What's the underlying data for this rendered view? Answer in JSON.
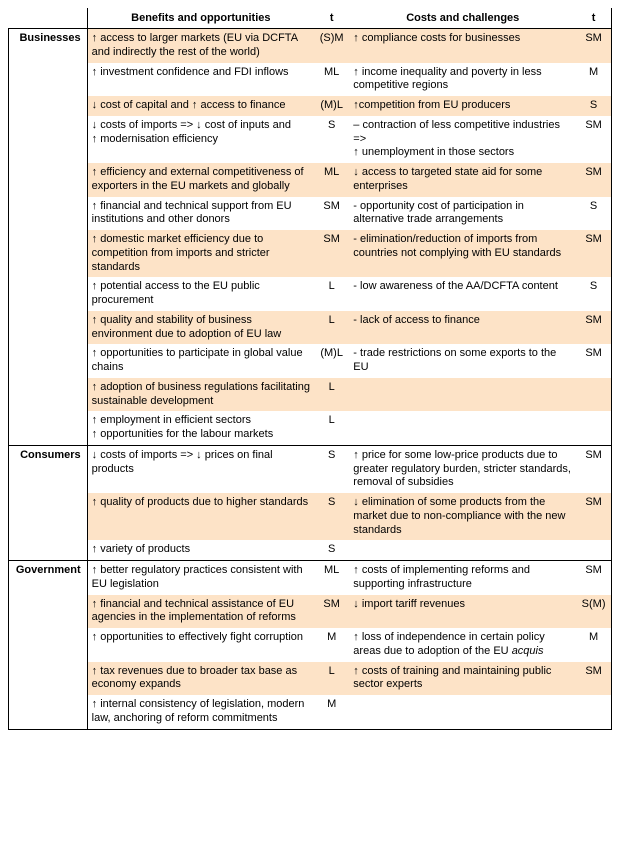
{
  "headers": {
    "group": "",
    "benefits": "Benefits and opportunities",
    "t1": "t",
    "costs": "Costs and challenges",
    "t2": "t"
  },
  "colors": {
    "shade": "#fde3c7",
    "border": "#000000",
    "text": "#000000",
    "background": "#ffffff"
  },
  "typography": {
    "font_family": "Arial, Helvetica, sans-serif",
    "font_size_pt": 8.5,
    "header_weight": "bold"
  },
  "sections": [
    {
      "name": "Businesses",
      "rows": [
        {
          "shade": true,
          "benefit": "↑ access to larger markets (EU via DCFTA and indirectly the rest of the world)",
          "t1": "(S)M",
          "cost": "↑ compliance costs for businesses",
          "t2": "SM"
        },
        {
          "shade": false,
          "benefit": "↑ investment confidence and FDI inflows",
          "t1": "ML",
          "cost": "↑ income inequality and poverty in less competitive regions",
          "t2": "M"
        },
        {
          "shade": true,
          "benefit": "↓ cost of capital and ↑ access to finance",
          "t1": "(M)L",
          "cost": "↑competition from EU producers",
          "t2": "S"
        },
        {
          "shade": false,
          "benefit": "↓ costs of imports => ↓ cost of inputs and\n↑ modernisation efficiency",
          "t1": "S",
          "cost": " – contraction of less competitive industries =>\n↑ unemployment in those sectors",
          "t2": "SM"
        },
        {
          "shade": true,
          "benefit": "↑ efficiency and external competitiveness of exporters in the EU markets and globally",
          "t1": "ML",
          "cost": "↓ access to targeted state aid for some enterprises",
          "t2": "SM"
        },
        {
          "shade": false,
          "benefit": "↑ financial and technical support from EU institutions and other donors",
          "t1": "SM",
          "cost": "- opportunity cost of participation in alternative trade arrangements",
          "t2": "S"
        },
        {
          "shade": true,
          "benefit": "↑ domestic market efficiency due to competition from imports and stricter standards",
          "t1": "SM",
          "cost": "- elimination/reduction of imports from countries not complying with EU standards",
          "t2": "SM"
        },
        {
          "shade": false,
          "benefit": "↑ potential access to the EU public procurement",
          "t1": "L",
          "cost": "- low awareness of the AA/DCFTA content",
          "t2": "S"
        },
        {
          "shade": true,
          "benefit": "↑ quality and stability of business environment due to adoption of EU law",
          "t1": "L",
          "cost": " - lack of access to finance",
          "t2": "SM"
        },
        {
          "shade": false,
          "benefit": "↑ opportunities to participate in global value chains",
          "t1": "(M)L",
          "cost": " - trade restrictions on some exports to the EU",
          "t2": "SM"
        },
        {
          "shade": true,
          "benefit": "↑ adoption of business regulations facilitating sustainable development",
          "t1": "L",
          "cost": "",
          "t2": ""
        },
        {
          "shade": false,
          "benefit": "↑ employment in efficient sectors\n↑ opportunities for the labour markets",
          "t1": "L",
          "cost": "",
          "t2": ""
        }
      ]
    },
    {
      "name": "Consumers",
      "rows": [
        {
          "shade": false,
          "benefit": "↓ costs of imports => ↓ prices on final products",
          "t1": "S",
          "cost": "↑ price for some low-price products due to greater regulatory burden, stricter standards, removal of subsidies",
          "t2": "SM"
        },
        {
          "shade": true,
          "benefit": "↑ quality of products due to higher standards",
          "t1": "S",
          "cost": "↓ elimination of some products from the market due to non-compliance with the new standards",
          "t2": "SM"
        },
        {
          "shade": false,
          "benefit": "↑ variety of products",
          "t1": "S",
          "cost": "",
          "t2": ""
        }
      ]
    },
    {
      "name": "Government",
      "rows": [
        {
          "shade": false,
          "benefit": "↑ better regulatory practices consistent with EU legislation",
          "t1": "ML",
          "cost": "↑ costs of implementing reforms and supporting infrastructure",
          "t2": "SM"
        },
        {
          "shade": true,
          "benefit": "↑ financial and technical assistance of EU agencies in the implementation of reforms",
          "t1": "SM",
          "cost": "↓ import tariff revenues",
          "t2": "S(M)"
        },
        {
          "shade": false,
          "benefit": "↑ opportunities to effectively fight corruption",
          "t1": "M",
          "cost_html": "↑ loss of independence in certain policy areas due to adoption of the EU <em class='acquis'>acquis</em>",
          "cost": "↑ loss of independence in certain policy areas due to adoption of the EU acquis",
          "t2": "M"
        },
        {
          "shade": true,
          "benefit": "↑ tax revenues due to broader tax base as economy expands",
          "t1": "L",
          "cost": "↑ costs of training and maintaining public sector experts",
          "t2": "SM"
        },
        {
          "shade": false,
          "benefit": "↑ internal consistency of legislation, modern law, anchoring of reform commitments",
          "t1": "M",
          "cost": "",
          "t2": ""
        }
      ]
    }
  ]
}
